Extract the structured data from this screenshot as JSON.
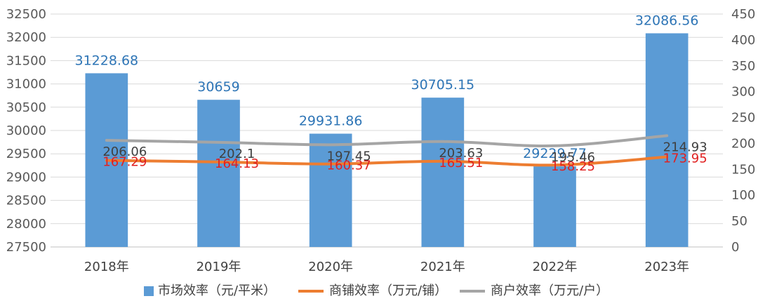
{
  "chart_data": {
    "type": "bar",
    "title": "",
    "categories": [
      "2018年",
      "2019年",
      "2020年",
      "2021年",
      "2022年",
      "2023年"
    ],
    "series": [
      {
        "name": "市场效率（元/平米）",
        "type": "bar",
        "axis": "left",
        "color": "#5B9BD5",
        "label_color": "#2E75B6",
        "values": [
          31228.68,
          30659,
          29931.86,
          30705.15,
          29229.77,
          32086.56
        ],
        "labels": [
          "31228.68",
          "30659",
          "29931.86",
          "30705.15",
          "29229.77",
          "32086.56"
        ]
      },
      {
        "name": "商铺效率（万元/铺）",
        "type": "line",
        "axis": "right",
        "color": "#ED7D31",
        "label_color": "#E02020",
        "values": [
          167.29,
          164.13,
          160.37,
          165.51,
          158.25,
          173.95
        ],
        "labels": [
          "167.29",
          "164.13",
          "160.37",
          "165.51",
          "158.25",
          "173.95"
        ]
      },
      {
        "name": "商户效率（万元/户）",
        "type": "line",
        "axis": "right",
        "color": "#A5A5A5",
        "label_color": "#404040",
        "values": [
          206.06,
          202.1,
          197.45,
          203.63,
          195.46,
          214.93
        ],
        "labels": [
          "206.06",
          "202.1",
          "197.45",
          "203.63",
          "195.46",
          "214.93"
        ]
      }
    ],
    "y_left": {
      "range": [
        27500,
        32500
      ],
      "step": 500,
      "ticks": [
        "27500",
        "28000",
        "28500",
        "29000",
        "29500",
        "30000",
        "30500",
        "31000",
        "31500",
        "32000",
        "32500"
      ]
    },
    "y_right": {
      "range": [
        0,
        450
      ],
      "step": 50,
      "ticks": [
        "0",
        "50",
        "100",
        "150",
        "200",
        "250",
        "300",
        "350",
        "400",
        "450"
      ]
    },
    "grid": true,
    "legend": "bottom"
  }
}
